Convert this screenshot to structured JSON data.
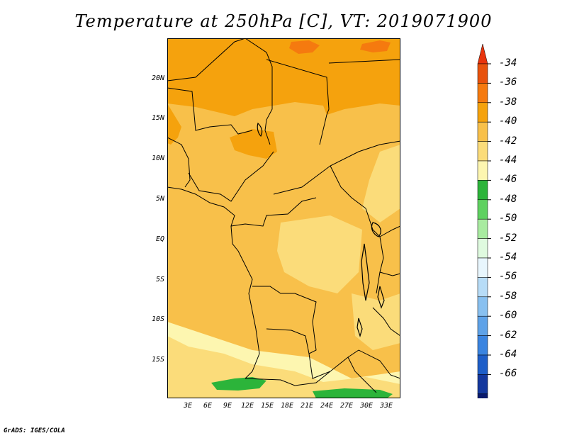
{
  "title": "Temperature at 250hPa [C], VT: 2019071900",
  "credit": "GrADS: IGES/COLA",
  "map": {
    "lat_labels": [
      "20N",
      "15N",
      "10N",
      "5N",
      "EQ",
      "5S",
      "10S",
      "15S"
    ],
    "lon_labels": [
      "3E",
      "6E",
      "9E",
      "12E",
      "15E",
      "18E",
      "21E",
      "24E",
      "27E",
      "30E",
      "33E"
    ]
  },
  "legend": {
    "labels": [
      "-34",
      "-36",
      "-38",
      "-40",
      "-42",
      "-44",
      "-46",
      "-48",
      "-50",
      "-52",
      "-54",
      "-56",
      "-58",
      "-60",
      "-62",
      "-64",
      "-66"
    ],
    "colors": [
      "#e8520d",
      "#f57a0f",
      "#f5a20d",
      "#f8c04a",
      "#fbdc7a",
      "#fdf6b0",
      "#2cb43a",
      "#5fd160",
      "#a8eba0",
      "#dffadf",
      "#e8f6fd",
      "#b7dcf7",
      "#88c0f0",
      "#5ea2e8",
      "#3a84e0",
      "#1e5ec8",
      "#14389e",
      "#0a1a6e"
    ],
    "top_arrow_color": "#e8340d",
    "bottom_arrow_color": "#e0e0f8"
  }
}
